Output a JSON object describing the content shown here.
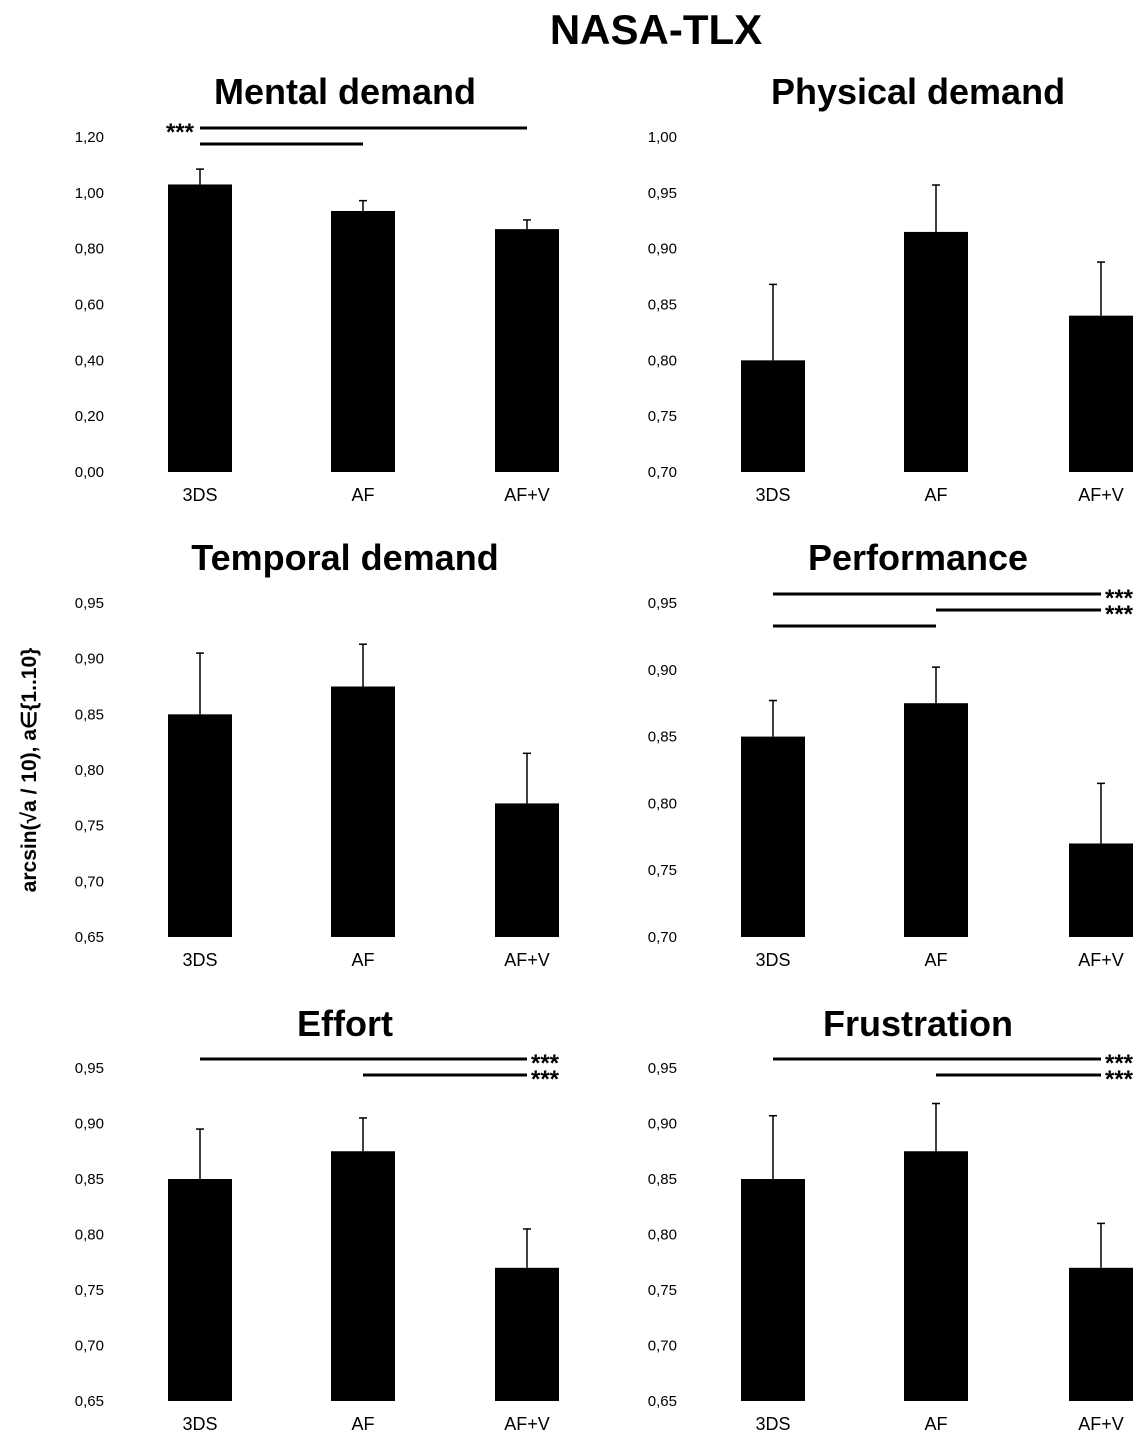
{
  "title": "NASA-TLX",
  "ylabel": "arcsin(√a / 10), a∈{1..10}",
  "chart_data": [
    {
      "type": "bar",
      "title": "Mental demand",
      "categories": [
        "3DS",
        "AF",
        "AF+V"
      ],
      "values": [
        1.03,
        0.935,
        0.87
      ],
      "errors": [
        0.055,
        0.037,
        0.033
      ],
      "ylim": [
        0.0,
        1.2
      ],
      "yticks": [
        "0,00",
        "0,20",
        "0,40",
        "0,60",
        "0,80",
        "1,00",
        "1,20"
      ],
      "significance": [
        {
          "from": "3DS",
          "to": "AF+V",
          "label": "***"
        },
        {
          "from": "3DS",
          "to": "AF",
          "label": ""
        }
      ]
    },
    {
      "type": "bar",
      "title": "Physical demand",
      "categories": [
        "3DS",
        "AF",
        "AF+V"
      ],
      "values": [
        0.8,
        0.915,
        0.84
      ],
      "errors": [
        0.068,
        0.042,
        0.048
      ],
      "ylim": [
        0.7,
        1.0
      ],
      "yticks": [
        "0,70",
        "0,75",
        "0,80",
        "0,85",
        "0,90",
        "0,95",
        "1,00"
      ],
      "significance": []
    },
    {
      "type": "bar",
      "title": "Temporal demand",
      "categories": [
        "3DS",
        "AF",
        "AF+V"
      ],
      "values": [
        0.85,
        0.875,
        0.77
      ],
      "errors": [
        0.055,
        0.038,
        0.045
      ],
      "ylim": [
        0.65,
        0.95
      ],
      "yticks": [
        "0,65",
        "0,70",
        "0,75",
        "0,80",
        "0,85",
        "0,90",
        "0,95"
      ],
      "significance": []
    },
    {
      "type": "bar",
      "title": "Performance",
      "categories": [
        "3DS",
        "AF",
        "AF+V"
      ],
      "values": [
        0.85,
        0.875,
        0.77
      ],
      "errors": [
        0.027,
        0.027,
        0.045
      ],
      "ylim": [
        0.7,
        0.95
      ],
      "yticks": [
        "0,70",
        "0,75",
        "0,80",
        "0,85",
        "0,90",
        "0,95"
      ],
      "significance": [
        {
          "from": "3DS",
          "to": "AF+V",
          "label": "***"
        },
        {
          "from": "AF",
          "to": "AF+V",
          "label": "***"
        },
        {
          "from": "3DS",
          "to": "AF",
          "label": ""
        }
      ]
    },
    {
      "type": "bar",
      "title": "Effort",
      "categories": [
        "3DS",
        "AF",
        "AF+V"
      ],
      "values": [
        0.85,
        0.875,
        0.77
      ],
      "errors": [
        0.045,
        0.03,
        0.035
      ],
      "ylim": [
        0.65,
        0.95
      ],
      "yticks": [
        "0,65",
        "0,70",
        "0,75",
        "0,80",
        "0,85",
        "0,90",
        "0,95"
      ],
      "significance": [
        {
          "from": "3DS",
          "to": "AF+V",
          "label": "***"
        },
        {
          "from": "AF",
          "to": "AF+V",
          "label": "***"
        }
      ]
    },
    {
      "type": "bar",
      "title": "Frustration",
      "categories": [
        "3DS",
        "AF",
        "AF+V"
      ],
      "values": [
        0.85,
        0.875,
        0.77
      ],
      "errors": [
        0.057,
        0.043,
        0.04
      ],
      "ylim": [
        0.65,
        0.95
      ],
      "yticks": [
        "0,65",
        "0,70",
        "0,75",
        "0,80",
        "0,85",
        "0,90",
        "0,95"
      ],
      "significance": [
        {
          "from": "3DS",
          "to": "AF+V",
          "label": "***"
        },
        {
          "from": "AF",
          "to": "AF+V",
          "label": "***"
        }
      ]
    }
  ]
}
